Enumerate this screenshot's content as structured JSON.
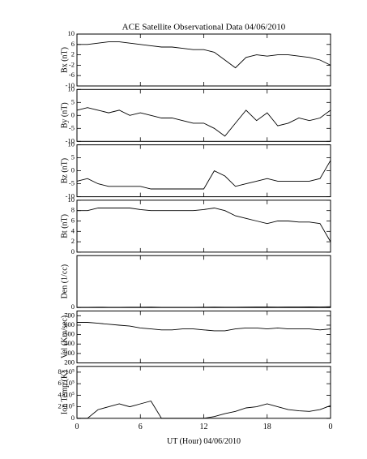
{
  "chart_data": [
    {
      "type": "line",
      "title": "ACE Satellite Observational Data  04/06/2010",
      "ylabel": "Bx (nT)",
      "x": [
        0,
        1,
        2,
        3,
        4,
        5,
        6,
        7,
        8,
        9,
        10,
        11,
        12,
        13,
        14,
        15,
        16,
        17,
        18,
        19,
        20,
        21,
        22,
        23,
        24
      ],
      "values": [
        6,
        6,
        6.5,
        7,
        7,
        6.5,
        6,
        5.5,
        5,
        5,
        4.5,
        4,
        4,
        3,
        0,
        -3,
        1,
        2,
        1.5,
        2,
        2,
        1.5,
        1,
        0,
        -2
      ],
      "xlim": [
        0,
        24
      ],
      "xticks": [
        0,
        6,
        12,
        18,
        24
      ],
      "ylim": [
        -10,
        10
      ],
      "yticks": [
        -10,
        -6,
        -2,
        2,
        6,
        10
      ]
    },
    {
      "type": "line",
      "ylabel": "By (nT)",
      "x": [
        0,
        1,
        2,
        3,
        4,
        5,
        6,
        7,
        8,
        9,
        10,
        11,
        12,
        13,
        14,
        15,
        16,
        17,
        18,
        19,
        20,
        21,
        22,
        23,
        24
      ],
      "values": [
        2,
        3,
        2,
        1,
        2,
        0,
        1,
        0,
        -1,
        -1,
        -2,
        -3,
        -3,
        -5,
        -8,
        -3,
        2,
        -2,
        1,
        -4,
        -3,
        -1,
        -2,
        -1,
        2
      ],
      "xlim": [
        0,
        24
      ],
      "xticks": [
        0,
        6,
        12,
        18,
        24
      ],
      "ylim": [
        -10,
        10
      ],
      "yticks": [
        -10,
        -5,
        0,
        5,
        10
      ]
    },
    {
      "type": "line",
      "ylabel": "Bz (nT)",
      "x": [
        0,
        1,
        2,
        3,
        4,
        5,
        6,
        7,
        8,
        9,
        10,
        11,
        12,
        13,
        14,
        15,
        16,
        17,
        18,
        19,
        20,
        21,
        22,
        23,
        24
      ],
      "values": [
        -4,
        -3,
        -5,
        -6,
        -6,
        -6,
        -6,
        -7,
        -7,
        -7,
        -7,
        -7,
        -7,
        0,
        -2,
        -6,
        -5,
        -4,
        -3,
        -4,
        -4,
        -4,
        -4,
        -3,
        4
      ],
      "xlim": [
        0,
        24
      ],
      "xticks": [
        0,
        6,
        12,
        18,
        24
      ],
      "ylim": [
        -10,
        10
      ],
      "yticks": [
        -10,
        -5,
        0,
        5,
        10
      ]
    },
    {
      "type": "line",
      "ylabel": "Bt (nT)",
      "x": [
        0,
        1,
        2,
        3,
        4,
        5,
        6,
        7,
        8,
        9,
        10,
        11,
        12,
        13,
        14,
        15,
        16,
        17,
        18,
        19,
        20,
        21,
        22,
        23,
        24
      ],
      "values": [
        8,
        8,
        8.5,
        8.5,
        8.5,
        8.5,
        8.2,
        8,
        8,
        8,
        8,
        8,
        8.2,
        8.5,
        8,
        7,
        6.5,
        6,
        5.5,
        6,
        6,
        5.8,
        5.8,
        5.5,
        2
      ],
      "xlim": [
        0,
        24
      ],
      "xticks": [
        0,
        6,
        12,
        18,
        24
      ],
      "ylim": [
        0,
        10
      ],
      "yticks": [
        0,
        2,
        4,
        6,
        8,
        10
      ]
    },
    {
      "type": "line",
      "ylabel": "Den (1/cc)",
      "x": [
        0,
        1,
        2,
        3,
        4,
        5,
        6,
        7,
        8,
        9,
        10,
        11,
        12,
        13,
        14,
        15,
        16,
        17,
        18,
        19,
        20,
        21,
        22,
        23,
        24
      ],
      "values": [
        0.5,
        0.5,
        0.6,
        0.5,
        0.5,
        0.6,
        0.7,
        0.8,
        0.5,
        0.5,
        0.5,
        0.5,
        0.6,
        0.8,
        0.7,
        0.6,
        0.8,
        0.9,
        1,
        0.8,
        0.9,
        1,
        1.1,
        1,
        1.5
      ],
      "xlim": [
        0,
        24
      ],
      "xticks": [
        0,
        6,
        12,
        18,
        24
      ],
      "ylim": [
        0,
        100
      ],
      "yticks": [
        0
      ]
    },
    {
      "type": "line",
      "ylabel": "Vel (Km/sec)",
      "x": [
        0,
        1,
        2,
        3,
        4,
        5,
        6,
        7,
        8,
        9,
        10,
        11,
        12,
        13,
        14,
        15,
        16,
        17,
        18,
        19,
        20,
        21,
        22,
        23,
        24
      ],
      "values": [
        630,
        630,
        620,
        610,
        600,
        590,
        570,
        560,
        550,
        550,
        560,
        560,
        550,
        540,
        540,
        560,
        570,
        570,
        560,
        570,
        560,
        560,
        560,
        550,
        560
      ],
      "xlim": [
        0,
        24
      ],
      "xticks": [
        0,
        6,
        12,
        18,
        24
      ],
      "ylim": [
        200,
        750
      ],
      "yticks": [
        200,
        300,
        400,
        500,
        600,
        700
      ]
    },
    {
      "type": "line",
      "ylabel": "Ion Temp (K)",
      "xlabel": "UT (Hour)  04/06/2010",
      "x": [
        0,
        1,
        2,
        3,
        4,
        5,
        6,
        7,
        8,
        9,
        10,
        11,
        12,
        13,
        14,
        15,
        16,
        17,
        18,
        19,
        20,
        21,
        22,
        23,
        24
      ],
      "values": [
        0,
        0,
        150000,
        200000,
        250000,
        200000,
        250000,
        300000,
        0,
        0,
        0,
        0,
        0,
        30000,
        80000,
        120000,
        180000,
        200000,
        250000,
        200000,
        150000,
        130000,
        120000,
        150000,
        220000
      ],
      "xlim": [
        0,
        24
      ],
      "xticks": [
        0,
        6,
        12,
        18,
        {
          "value": 24,
          "label": "0"
        }
      ],
      "ylim": [
        0,
        900000
      ],
      "yticks": [
        0,
        {
          "value": 200000,
          "label": "2×10⁵"
        },
        {
          "value": 400000,
          "label": "4×10⁵"
        },
        {
          "value": 600000,
          "label": "6×10⁵"
        },
        {
          "value": 800000,
          "label": "8×10⁵"
        }
      ]
    }
  ]
}
